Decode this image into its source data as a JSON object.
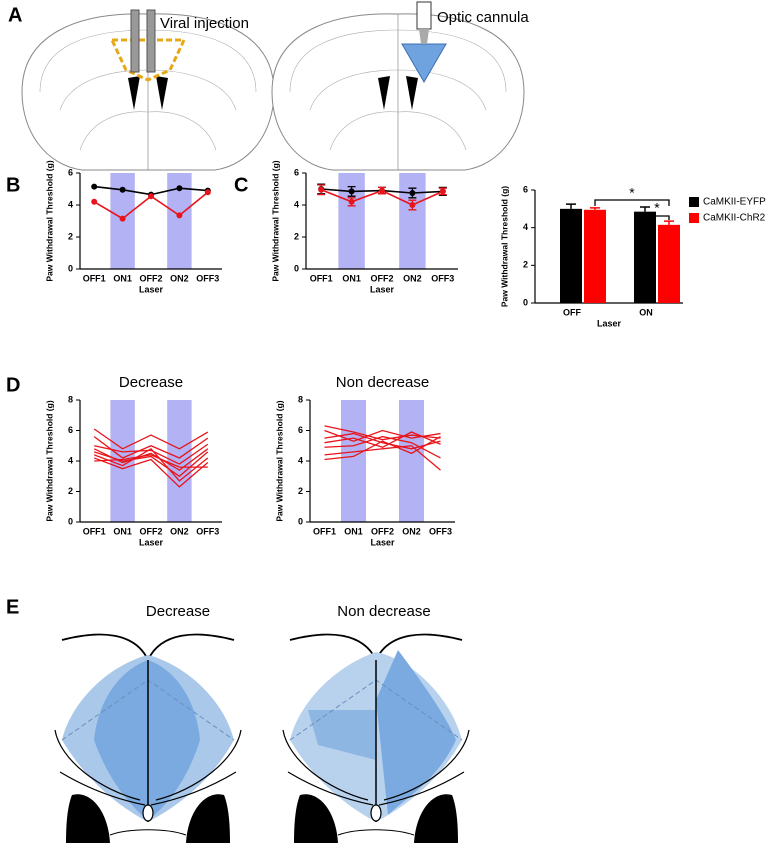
{
  "figure": {
    "panel_labels": [
      "A",
      "B",
      "C",
      "D",
      "E"
    ],
    "annotations": [
      "Viral injection",
      "Optic cannula"
    ],
    "e_titles": [
      "Decrease",
      "Non decrease"
    ]
  },
  "chart_data": [
    {
      "type": "line",
      "y_label": "Paw Withdrawal Threshold  (g)",
      "x_label": "Laser",
      "categories": [
        "OFF1",
        "ON1",
        "OFF2",
        "ON2",
        "OFF3"
      ],
      "highlight": [
        1,
        3
      ],
      "markers": true,
      "ylim": [
        0,
        6
      ],
      "yticks": [
        0,
        2,
        4,
        6
      ],
      "series": [
        {
          "color": "#000000",
          "values": [
            5.15,
            4.95,
            4.65,
            5.05,
            4.9
          ]
        },
        {
          "color": "#e8141b",
          "values": [
            4.2,
            3.15,
            4.55,
            3.35,
            4.8
          ]
        }
      ]
    },
    {
      "type": "line",
      "y_label": "Paw Withdrawal Threshold  (g)",
      "x_label": "Laser",
      "categories": [
        "OFF1",
        "ON1",
        "OFF2",
        "ON2",
        "OFF3"
      ],
      "highlight": [
        1,
        3
      ],
      "markers": true,
      "ylim": [
        0,
        6
      ],
      "yticks": [
        0,
        2,
        4,
        6
      ],
      "series": [
        {
          "color": "#000000",
          "values": [
            5.0,
            4.85,
            4.9,
            4.75,
            4.85
          ],
          "errors": [
            0.3,
            0.3,
            0.2,
            0.3,
            0.25
          ]
        },
        {
          "color": "#e8141b",
          "values": [
            4.95,
            4.2,
            4.9,
            4.0,
            4.85
          ],
          "errors": [
            0.3,
            0.25,
            0.2,
            0.3,
            0.2
          ]
        }
      ]
    },
    {
      "type": "bar",
      "y_label": "Paw Withdrawal Threshold  (g)",
      "x_label": "Laser",
      "categories": [
        "OFF",
        "ON"
      ],
      "ylim": [
        0,
        6
      ],
      "yticks": [
        0,
        2,
        4,
        6
      ],
      "legend": "right",
      "series": [
        {
          "name": "CaMKII-EYFP",
          "color": "#000000",
          "values": [
            5.0,
            4.85
          ],
          "errors": [
            0.25,
            0.25
          ]
        },
        {
          "name": "CaMKII-ChR2",
          "color": "#ff0000",
          "values": [
            4.95,
            4.15
          ],
          "errors": [
            0.1,
            0.2
          ]
        }
      ],
      "annotations": [
        "*",
        "*"
      ]
    },
    {
      "type": "line",
      "title": "Decrease",
      "y_label": "Paw Withdrawal Threshold  (g)",
      "x_label": "Laser",
      "categories": [
        "OFF1",
        "ON1",
        "OFF2",
        "ON2",
        "OFF3"
      ],
      "highlight": [
        1,
        3
      ],
      "markers": false,
      "ylim": [
        0,
        8
      ],
      "yticks": [
        0,
        2,
        4,
        6,
        8
      ],
      "series": [
        {
          "color": "#e8141b",
          "values": [
            6.1,
            4.8,
            5.7,
            4.8,
            5.9
          ]
        },
        {
          "color": "#e8141b",
          "values": [
            5.6,
            4.2,
            5.0,
            4.2,
            5.5
          ]
        },
        {
          "color": "#e8141b",
          "values": [
            5.0,
            4.6,
            4.7,
            3.8,
            5.1
          ]
        },
        {
          "color": "#e8141b",
          "values": [
            4.8,
            3.9,
            4.5,
            3.4,
            4.8
          ]
        },
        {
          "color": "#e8141b",
          "values": [
            4.6,
            4.0,
            4.3,
            3.0,
            4.6
          ]
        },
        {
          "color": "#e8141b",
          "values": [
            4.4,
            3.7,
            4.8,
            2.7,
            4.2
          ]
        },
        {
          "color": "#e8141b",
          "values": [
            4.2,
            3.5,
            4.1,
            2.3,
            3.9
          ]
        },
        {
          "color": "#e8141b",
          "values": [
            4.0,
            4.1,
            4.4,
            3.6,
            3.6
          ]
        }
      ]
    },
    {
      "type": "line",
      "title": "Non decrease",
      "y_label": "Paw Withdrawal Threshold  (g)",
      "x_label": "Laser",
      "categories": [
        "OFF1",
        "ON1",
        "OFF2",
        "ON2",
        "OFF3"
      ],
      "highlight": [
        1,
        3
      ],
      "markers": false,
      "ylim": [
        0,
        8
      ],
      "yticks": [
        0,
        2,
        4,
        6,
        8
      ],
      "series": [
        {
          "color": "#e8141b",
          "values": [
            6.3,
            5.9,
            5.4,
            5.7,
            5.5
          ]
        },
        {
          "color": "#e8141b",
          "values": [
            6.0,
            5.3,
            6.0,
            5.5,
            5.8
          ]
        },
        {
          "color": "#e8141b",
          "values": [
            5.5,
            5.8,
            5.2,
            4.8,
            5.3
          ]
        },
        {
          "color": "#e8141b",
          "values": [
            5.2,
            5.5,
            4.9,
            5.9,
            5.1
          ]
        },
        {
          "color": "#e8141b",
          "values": [
            4.9,
            5.0,
            5.6,
            5.2,
            4.2
          ]
        },
        {
          "color": "#e8141b",
          "values": [
            4.4,
            4.6,
            4.8,
            5.0,
            3.4
          ]
        },
        {
          "color": "#e8141b",
          "values": [
            4.1,
            4.3,
            5.3,
            4.5,
            5.6
          ]
        }
      ]
    }
  ]
}
